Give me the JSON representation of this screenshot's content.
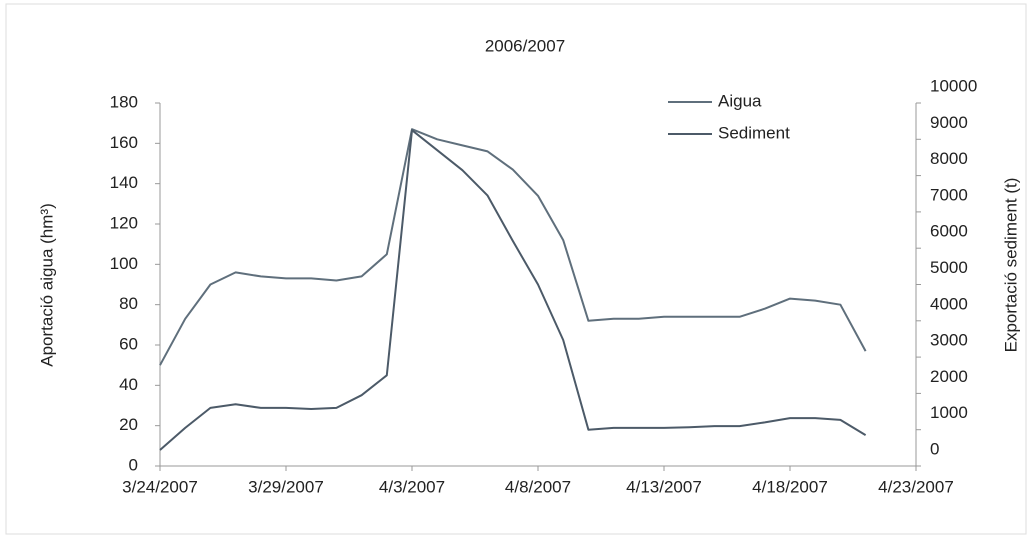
{
  "chart_data": {
    "type": "line",
    "title": "2006/2007",
    "y_label": "Aportació aigua (hm³)",
    "y2_label": "Exportació sediment (t)",
    "x": [
      "3/24/2007",
      "3/25/2007",
      "3/26/2007",
      "3/27/2007",
      "3/28/2007",
      "3/29/2007",
      "3/30/2007",
      "3/31/2007",
      "4/1/2007",
      "4/2/2007",
      "4/3/2007",
      "4/4/2007",
      "4/5/2007",
      "4/6/2007",
      "4/7/2007",
      "4/8/2007",
      "4/9/2007",
      "4/10/2007",
      "4/11/2007",
      "4/12/2007",
      "4/13/2007",
      "4/14/2007",
      "4/15/2007",
      "4/16/2007",
      "4/17/2007",
      "4/18/2007",
      "4/19/2007",
      "4/20/2007",
      "4/21/2007"
    ],
    "series": [
      {
        "name": "Aigua",
        "color": "#5f6f7c",
        "values": [
          50,
          73,
          90,
          96,
          94,
          93,
          93,
          92,
          94,
          105,
          167,
          162,
          159,
          156,
          147,
          134,
          112,
          72,
          73,
          73,
          74,
          74,
          74,
          74,
          78,
          83,
          82,
          80,
          57
        ]
      },
      {
        "name": "Sediment",
        "color": "#4c5a68",
        "axis": "y2",
        "values": [
          440,
          1050,
          1600,
          1700,
          1600,
          1600,
          1570,
          1600,
          1950,
          2500,
          9250,
          8700,
          8150,
          7450,
          6200,
          5000,
          3470,
          1000,
          1050,
          1050,
          1050,
          1070,
          1100,
          1100,
          1200,
          1320,
          1320,
          1270,
          850
        ]
      }
    ],
    "xlim": [
      "3/24/2007",
      "4/23/2007"
    ],
    "xticks": [
      "3/24/2007",
      "3/29/2007",
      "4/3/2007",
      "4/8/2007",
      "4/13/2007",
      "4/18/2007",
      "4/23/2007"
    ],
    "ylim": [
      0,
      180
    ],
    "yticks": [
      0,
      20,
      40,
      60,
      80,
      100,
      120,
      140,
      160,
      180
    ],
    "y2lim": [
      0,
      10000
    ],
    "y2ticks": [
      0,
      1000,
      2000,
      3000,
      4000,
      5000,
      6000,
      7000,
      8000,
      9000,
      10000
    ],
    "legend": "top-right"
  }
}
